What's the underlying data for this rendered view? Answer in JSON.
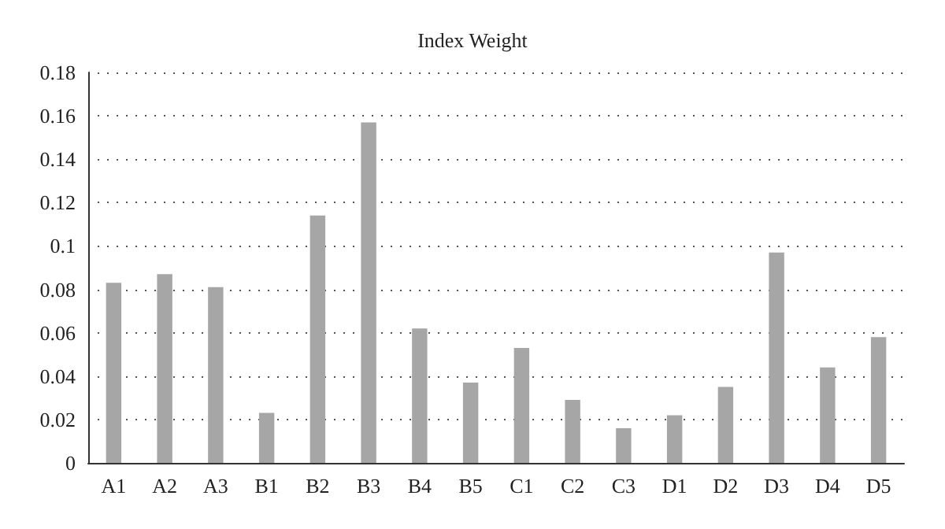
{
  "chart_data": {
    "type": "bar",
    "title": "Index Weight",
    "categories": [
      "A1",
      "A2",
      "A3",
      "B1",
      "B2",
      "B3",
      "B4",
      "B5",
      "C1",
      "C2",
      "C3",
      "D1",
      "D2",
      "D3",
      "D4",
      "D5"
    ],
    "values": [
      0.083,
      0.087,
      0.081,
      0.023,
      0.114,
      0.157,
      0.062,
      0.037,
      0.053,
      0.029,
      0.016,
      0.022,
      0.035,
      0.097,
      0.044,
      0.058
    ],
    "color": "#a6a6a6",
    "ylim": [
      0,
      0.18
    ],
    "yticks": [
      0,
      0.02,
      0.04,
      0.06,
      0.08,
      0.1,
      0.12,
      0.14,
      0.16,
      0.18
    ],
    "grid": "y"
  }
}
